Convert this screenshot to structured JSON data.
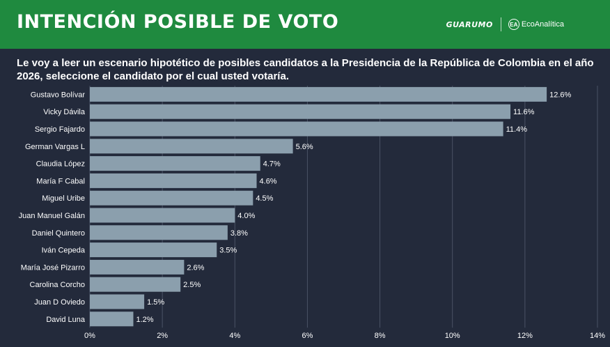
{
  "header": {
    "title": "INTENCIÓN POSIBLE DE VOTO",
    "logo_primary": "GUARUMO",
    "logo_secondary": "EcoAnalítica",
    "logo_secondary_mark": "EA"
  },
  "question": "Le voy a leer un escenario hipotético de posibles candidatos a la Presidencia de la República de Colombia en el año 2026, seleccione el candidato por el cual usted votaría.",
  "colors": {
    "background": "#232a3b",
    "header": "#1f8a3f",
    "bar": "#8b9fad",
    "grid": "#4a5366"
  },
  "chart_data": {
    "type": "bar",
    "orientation": "horizontal",
    "categories": [
      "Gustavo Bolívar",
      "Vicky Dávila",
      "Sergio Fajardo",
      "German Vargas L",
      "Claudia López",
      "María F Cabal",
      "Miguel Uribe",
      "Juan Manuel Galán",
      "Daniel Quintero",
      "Iván Cepeda",
      "María José Pizarro",
      "Carolina Corcho",
      "Juan D Oviedo",
      "David Luna"
    ],
    "values": [
      12.6,
      11.6,
      11.4,
      5.6,
      4.7,
      4.6,
      4.5,
      4.0,
      3.8,
      3.5,
      2.6,
      2.5,
      1.5,
      1.2
    ],
    "value_labels": [
      "12.6%",
      "11.6%",
      "11.4%",
      "5.6%",
      "4.7%",
      "4.6%",
      "4.5%",
      "4.0%",
      "3.8%",
      "3.5%",
      "2.6%",
      "2.5%",
      "1.5%",
      "1.2%"
    ],
    "xlim": [
      0,
      14
    ],
    "xticks": [
      0,
      2,
      4,
      6,
      8,
      10,
      12,
      14
    ],
    "xtick_labels": [
      "0%",
      "2%",
      "4%",
      "6%",
      "8%",
      "10%",
      "12%",
      "14%"
    ],
    "grid": true,
    "legend": "none"
  }
}
